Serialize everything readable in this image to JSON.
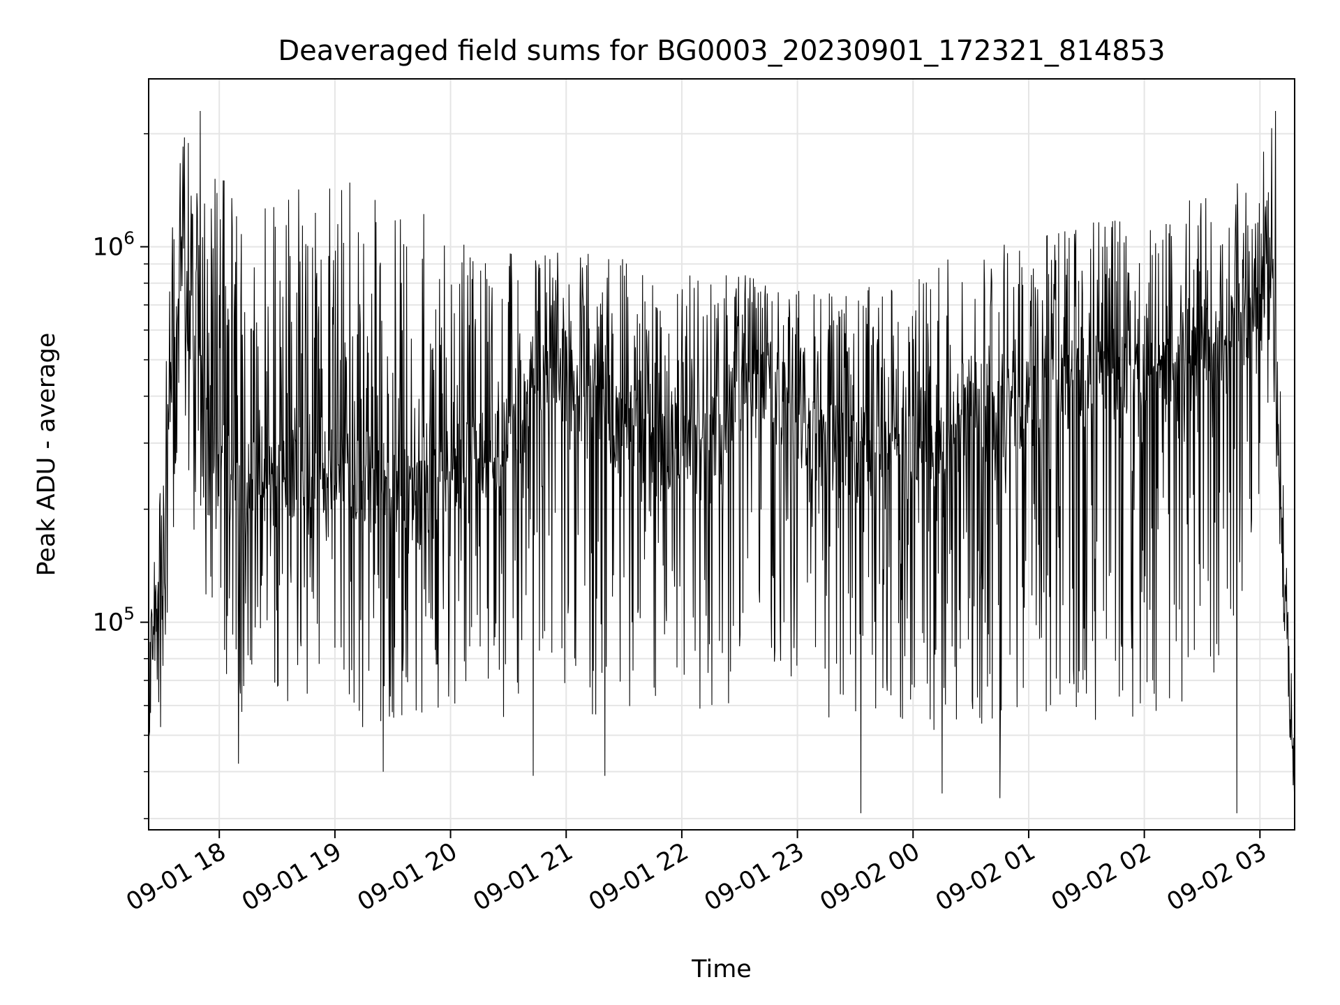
{
  "chart_data": {
    "type": "line",
    "title": "Deaveraged field sums for BG0003_20230901_172321_814853",
    "xlabel": "Time",
    "ylabel": "Peak ADU - average",
    "yscale": "log",
    "grid": true,
    "line_color": "#000000",
    "grid_color": "#e5e5e5",
    "x_range": [
      "2023-09-01 17:23:21",
      "2023-09-02 03:18:00"
    ],
    "ylim": [
      28000,
      2800000
    ],
    "x_ticks": [
      {
        "t": "2023-09-01 18:00",
        "label": "09-01 18"
      },
      {
        "t": "2023-09-01 19:00",
        "label": "09-01 19"
      },
      {
        "t": "2023-09-01 20:00",
        "label": "09-01 20"
      },
      {
        "t": "2023-09-01 21:00",
        "label": "09-01 21"
      },
      {
        "t": "2023-09-01 22:00",
        "label": "09-01 22"
      },
      {
        "t": "2023-09-01 23:00",
        "label": "09-01 23"
      },
      {
        "t": "2023-09-02 00:00",
        "label": "09-02 00"
      },
      {
        "t": "2023-09-02 01:00",
        "label": "09-02 01"
      },
      {
        "t": "2023-09-02 02:00",
        "label": "09-02 02"
      },
      {
        "t": "2023-09-02 03:00",
        "label": "09-02 03"
      }
    ],
    "y_ticks": [
      {
        "value": 100000,
        "base": "10",
        "exp": "5"
      },
      {
        "value": 1000000,
        "base": "10",
        "exp": "6"
      }
    ],
    "envelope": [
      {
        "t": "2023-09-01 17:23:21",
        "low": 48000,
        "typical": 65000,
        "high": 90000
      },
      {
        "t": "2023-09-01 17:33",
        "low": 55000,
        "typical": 300000,
        "high": 800000
      },
      {
        "t": "2023-09-01 17:40",
        "low": 300000,
        "typical": 900000,
        "high": 2300000
      },
      {
        "t": "2023-09-01 17:50",
        "low": 130000,
        "typical": 400000,
        "high": 1500000
      },
      {
        "t": "2023-09-01 18:10",
        "low": 55000,
        "typical": 200000,
        "high": 1550000
      },
      {
        "t": "2023-09-01 18:40",
        "low": 55000,
        "typical": 250000,
        "high": 1550000
      },
      {
        "t": "2023-09-01 19:10",
        "low": 52000,
        "typical": 250000,
        "high": 1500000
      },
      {
        "t": "2023-09-01 19:40",
        "low": 55000,
        "typical": 220000,
        "high": 1300000
      },
      {
        "t": "2023-09-01 20:00",
        "low": 55000,
        "typical": 250000,
        "high": 1150000
      },
      {
        "t": "2023-09-01 20:30",
        "low": 52000,
        "typical": 300000,
        "high": 1050000
      },
      {
        "t": "2023-09-01 20:50",
        "low": 60000,
        "typical": 500000,
        "high": 1000000
      },
      {
        "t": "2023-09-01 21:20",
        "low": 55000,
        "typical": 350000,
        "high": 950000
      },
      {
        "t": "2023-09-01 21:45",
        "low": 60000,
        "typical": 300000,
        "high": 900000
      },
      {
        "t": "2023-09-01 22:15",
        "low": 55000,
        "typical": 300000,
        "high": 850000
      },
      {
        "t": "2023-09-01 22:40",
        "low": 60000,
        "typical": 450000,
        "high": 850000
      },
      {
        "t": "2023-09-01 23:10",
        "low": 55000,
        "typical": 300000,
        "high": 750000
      },
      {
        "t": "2023-09-01 23:40",
        "low": 52000,
        "typical": 280000,
        "high": 800000
      },
      {
        "t": "2023-09-02 00:10",
        "low": 50000,
        "typical": 300000,
        "high": 900000
      },
      {
        "t": "2023-09-02 00:40",
        "low": 48000,
        "typical": 350000,
        "high": 1000000
      },
      {
        "t": "2023-09-02 01:10",
        "low": 52000,
        "typical": 400000,
        "high": 1100000
      },
      {
        "t": "2023-09-02 01:40",
        "low": 55000,
        "typical": 450000,
        "high": 1200000
      },
      {
        "t": "2023-09-02 02:10",
        "low": 55000,
        "typical": 500000,
        "high": 1300000
      },
      {
        "t": "2023-09-02 02:40",
        "low": 60000,
        "typical": 550000,
        "high": 1400000
      },
      {
        "t": "2023-09-02 03:00",
        "low": 200000,
        "typical": 700000,
        "high": 1700000
      },
      {
        "t": "2023-09-02 03:06",
        "low": 500000,
        "typical": 900000,
        "high": 2200000
      },
      {
        "t": "2023-09-02 03:12",
        "low": 100000,
        "typical": 150000,
        "high": 250000
      },
      {
        "t": "2023-09-02 03:18",
        "low": 30000,
        "typical": 35000,
        "high": 45000
      }
    ],
    "notable_points": [
      {
        "t": "2023-09-01 17:50",
        "value": 2300000
      },
      {
        "t": "2023-09-01 18:10",
        "value": 42000
      },
      {
        "t": "2023-09-01 19:25",
        "value": 40000
      },
      {
        "t": "2023-09-01 20:43",
        "value": 39000
      },
      {
        "t": "2023-09-01 21:20",
        "value": 39000
      },
      {
        "t": "2023-09-01 23:33",
        "value": 31000
      },
      {
        "t": "2023-09-02 00:15",
        "value": 35000
      },
      {
        "t": "2023-09-02 00:45",
        "value": 34000
      },
      {
        "t": "2023-09-02 02:48",
        "value": 31000
      },
      {
        "t": "2023-09-02 03:08",
        "value": 2300000
      }
    ]
  }
}
